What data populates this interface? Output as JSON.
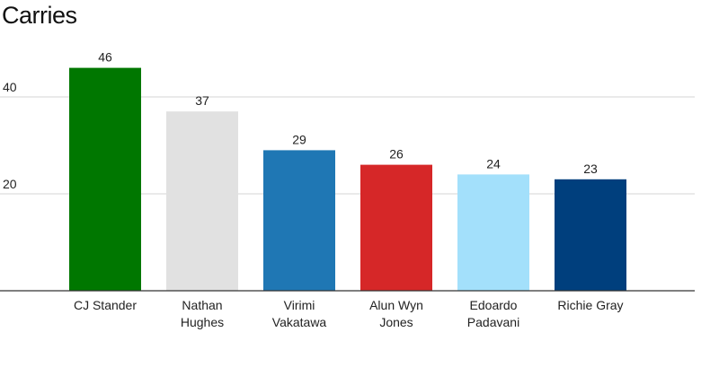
{
  "chart_data": {
    "type": "bar",
    "title": "Carries",
    "categories": [
      [
        "CJ Stander"
      ],
      [
        "Nathan",
        "Hughes"
      ],
      [
        "Virimi",
        "Vakatawa"
      ],
      [
        "Alun Wyn",
        "Jones"
      ],
      [
        "Edoardo",
        "Padavani"
      ],
      [
        "Richie Gray"
      ]
    ],
    "values": [
      46,
      37,
      29,
      26,
      24,
      23
    ],
    "colors": [
      "#007700",
      "#e1e1e1",
      "#1f77b4",
      "#d62728",
      "#a3e0fb",
      "#003f7d"
    ],
    "yticks": [
      20,
      40
    ],
    "ylim": [
      0,
      50
    ],
    "grid": true,
    "xlabel": "",
    "ylabel": ""
  }
}
